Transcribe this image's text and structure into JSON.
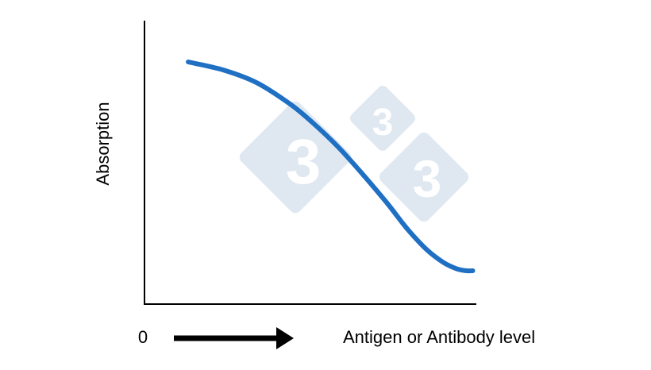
{
  "chart_data": {
    "type": "line",
    "title": "",
    "xlabel": "Antigen or Antibody level",
    "ylabel": "Absorption",
    "x_start_label": "0",
    "x_direction": "increasing",
    "ticks": false,
    "grid": false,
    "legend": "none",
    "xlim": [
      0,
      1
    ],
    "ylim": [
      0,
      1
    ],
    "series": [
      {
        "color": "#1f6fc3",
        "x": [
          0.09,
          0.2,
          0.3,
          0.4,
          0.47,
          0.55,
          0.63,
          0.7,
          0.76,
          0.82,
          0.87,
          0.91,
          0.94,
          0.96
        ],
        "y": [
          1.0,
          0.96,
          0.9,
          0.8,
          0.71,
          0.59,
          0.45,
          0.32,
          0.2,
          0.1,
          0.04,
          0.01,
          0.0,
          0.0
        ]
      }
    ]
  },
  "watermark": {
    "glyph": "3",
    "color": "#dfe8f0"
  },
  "colors": {
    "axis": "#000000",
    "series": "#1f6fc3"
  }
}
